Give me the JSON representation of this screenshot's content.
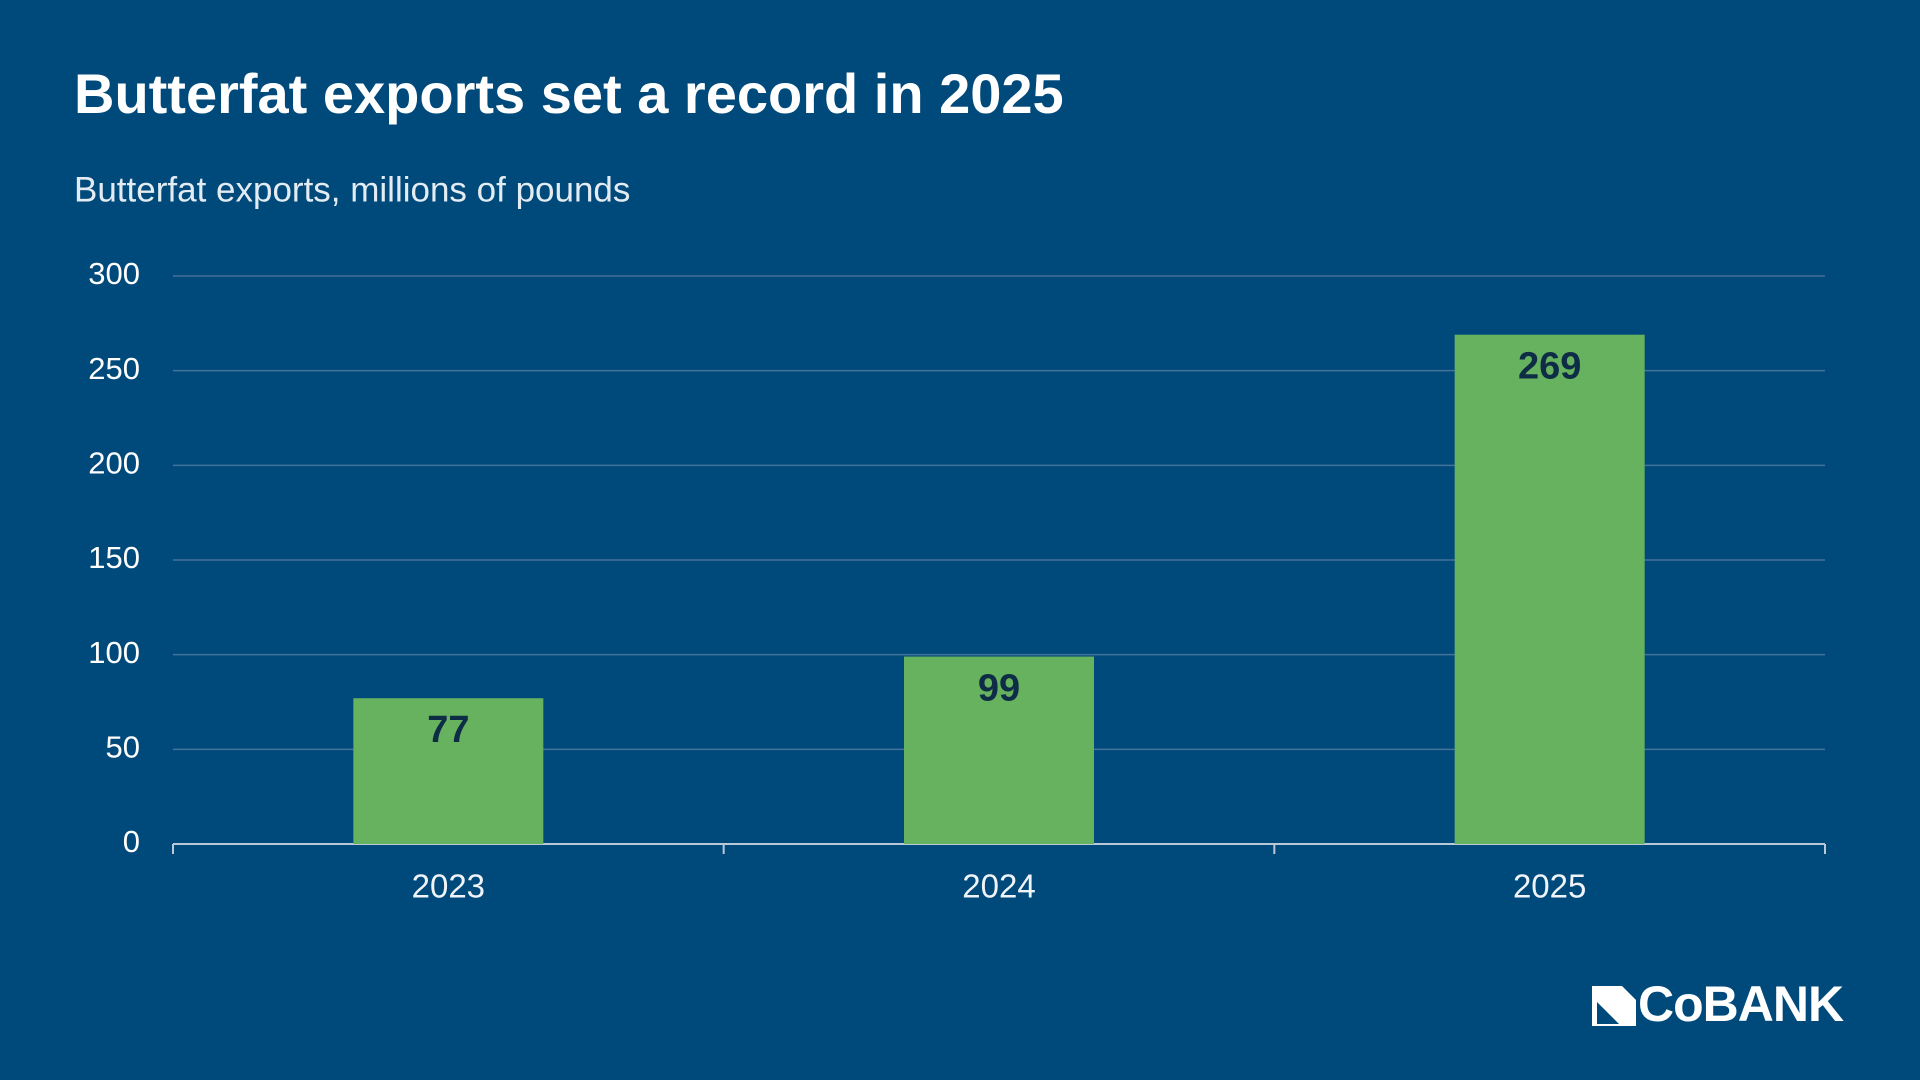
{
  "chart_data": {
    "type": "bar",
    "title": "Butterfat exports set a record in 2025",
    "subtitle": "Butterfat exports, millions of pounds",
    "categories": [
      "2023",
      "2024",
      "2025"
    ],
    "values": [
      77,
      99,
      269
    ],
    "color": "#66b25f",
    "ylim": [
      0,
      300
    ],
    "yticks": [
      0,
      50,
      100,
      150,
      200,
      250,
      300
    ],
    "grid": true
  },
  "logo": "CoBANK"
}
